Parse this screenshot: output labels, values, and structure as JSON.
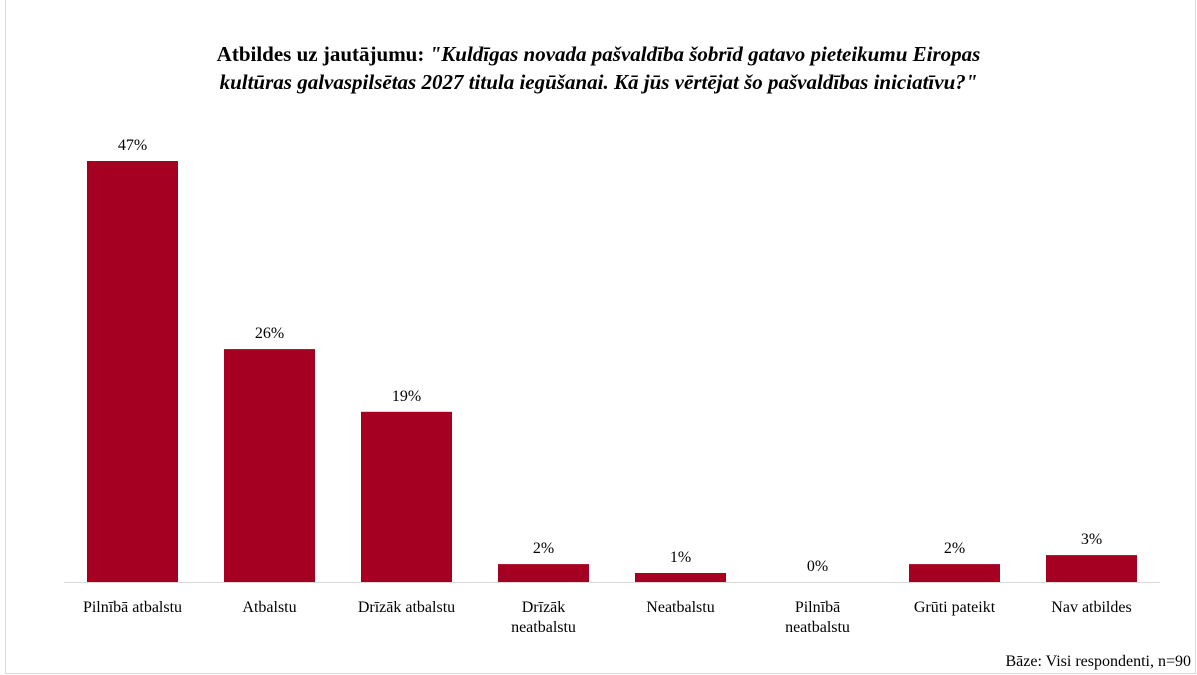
{
  "banner": {
    "text": "...spon... ...g... ...p..."
  },
  "chart_data": {
    "type": "bar",
    "title_prefix": "Atbildes uz jautājumu:",
    "title_question_line1": "\"Kuldīgas novada pašvaldība šobrīd gatavo pieteikumu Eiropas",
    "title_question_line2": "kultūras galvaspilsētas 2027 titula iegūšanai. Kā jūs vērtējat šo pašvaldības iniciatīvu?\"",
    "categories": [
      [
        "Pilnībā atbalstu"
      ],
      [
        "Atbalstu"
      ],
      [
        "Drīzāk atbalstu"
      ],
      [
        "Drīzāk",
        "neatbalstu"
      ],
      [
        "Neatbalstu"
      ],
      [
        "Pilnībā",
        "neatbalstu"
      ],
      [
        "Grūti pateikt"
      ],
      [
        "Nav atbildes"
      ]
    ],
    "values": [
      47,
      26,
      19,
      2,
      1,
      0,
      2,
      3
    ],
    "value_labels": [
      "47%",
      "26%",
      "19%",
      "2%",
      "1%",
      "0%",
      "2%",
      "3%"
    ],
    "ylim": [
      0,
      50
    ],
    "grid": false,
    "bar_color": "#a50021",
    "axis_color": "#d9d9d9"
  },
  "footer": {
    "base_text": "Bāze:  Visi respondenti, n=90"
  }
}
